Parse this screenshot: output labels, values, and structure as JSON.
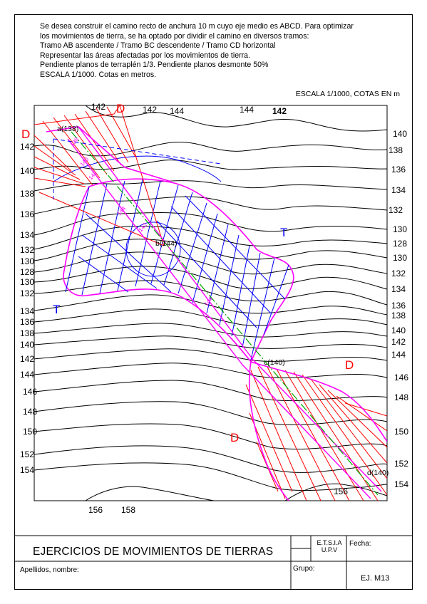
{
  "statement": [
    "Se desea construir el camino recto de anchura 10 m cuyo eje medio es ABCD. Para optimizar",
    "los movimientos de tierra, se ha optado por dividir el camino en diversos tramos:",
    "Tramo AB ascendente / Tramo BC descendente / Tramo CD horizontal",
    "Representar las áreas afectadas por los movimientos de tierra.",
    "Pendiente planos de terraplén 1/3. Pendiente planos desmonte 50%",
    "ESCALA 1/1000. Cotas en metros."
  ],
  "scale_note": "ESCALA 1/1000, COTAS EN m",
  "map": {
    "top_labels": [
      "142",
      "142",
      "144",
      "144",
      "142"
    ],
    "left_labels": [
      "142",
      "140",
      "138",
      "136",
      "134",
      "132",
      "130",
      "128",
      "130",
      "132",
      "134",
      "136",
      "138",
      "140",
      "142",
      "144",
      "146",
      "148",
      "150",
      "152",
      "154"
    ],
    "right_labels": [
      "140",
      "138",
      "136",
      "134",
      "132",
      "130",
      "128",
      "130",
      "132",
      "134",
      "136",
      "138",
      "140",
      "142",
      "144",
      "146",
      "148",
      "150",
      "152",
      "154"
    ],
    "bottom_labels": [
      "156",
      "158",
      "156"
    ],
    "points": {
      "a": "a(138)",
      "b": "b(144)",
      "c": "c(140)",
      "d": "d(140)"
    },
    "axis_marks": [
      "138",
      "140",
      "142",
      "144",
      "142",
      "144"
    ],
    "zone_letters": {
      "desmonte": "D",
      "terraplen": "T"
    },
    "colors": {
      "contour": "#000000",
      "fill_cut": "#ff0000",
      "fill_bank": "#0000ff",
      "boundary": "#ff00ff",
      "axis": "#00aa00",
      "letter_D": "#ff0000",
      "letter_T": "#0000ff"
    }
  },
  "title_block": {
    "title": "EJERCICIOS DE MOVIMIENTOS DE TIERRAS",
    "school_line1": "E.T.S.I.A",
    "school_line2": "U.P.V",
    "fecha": "Fecha:",
    "apellidos": "Apellidos, nombre:",
    "grupo": "Grupo:",
    "exercise": "EJ. M13"
  }
}
